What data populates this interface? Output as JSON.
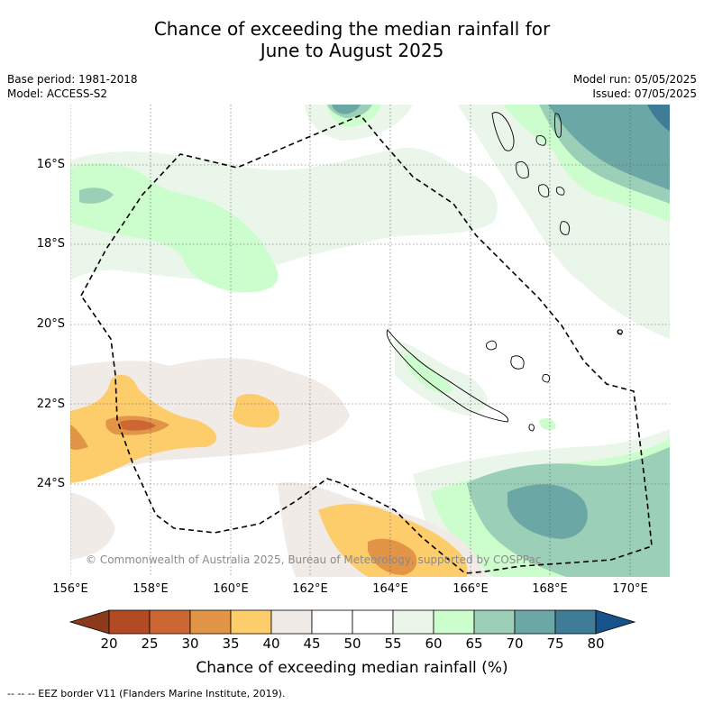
{
  "title": {
    "line1": "Chance of exceeding the median rainfall for",
    "line2": "June to August 2025"
  },
  "meta": {
    "base_period": "Base period: 1981-2018",
    "model": "Model: ACCESS-S2",
    "model_run": "Model run: 05/05/2025",
    "issued": "Issued: 07/05/2025"
  },
  "map": {
    "lat_labels": [
      "16°S",
      "18°S",
      "20°S",
      "22°S",
      "24°S"
    ],
    "lon_labels": [
      "156°E",
      "158°E",
      "160°E",
      "162°E",
      "164°E",
      "166°E",
      "168°E",
      "170°E"
    ],
    "copyright": "© Commonwealth of Australia 2025, Bureau of Meteorology, supported by COSPPac",
    "colors": {
      "c20_25": "#b24b24",
      "c25_30": "#cd6633",
      "c30_35": "#e29447",
      "c35_40": "#fdcd6b",
      "c40_45": "#f1ebe7",
      "c45_55": "#ffffff",
      "c55_60": "#eaf6ea",
      "c60_65": "#ccfdcc",
      "c65_70": "#9ccfb8",
      "c70_75": "#6ba7a5",
      "c75_80": "#3f7c97",
      "land_outline": "#000000",
      "eez_border": "#000000"
    }
  },
  "colorbar": {
    "ticks": [
      "20",
      "25",
      "30",
      "35",
      "40",
      "45",
      "50",
      "55",
      "60",
      "65",
      "70",
      "75",
      "80"
    ],
    "colors": [
      "#8b3a1a",
      "#b24b24",
      "#cd6633",
      "#e29447",
      "#fdcd6b",
      "#f1ebe7",
      "#ffffff",
      "#ffffff",
      "#eaf6ea",
      "#ccfdcc",
      "#9ccfb8",
      "#6ba7a5",
      "#3f7c97",
      "#17528a"
    ],
    "label": "Chance of exceeding median rainfall (%)"
  },
  "footnote": "-- -- -- EEZ border V11 (Flanders Marine Institute, 2019)."
}
